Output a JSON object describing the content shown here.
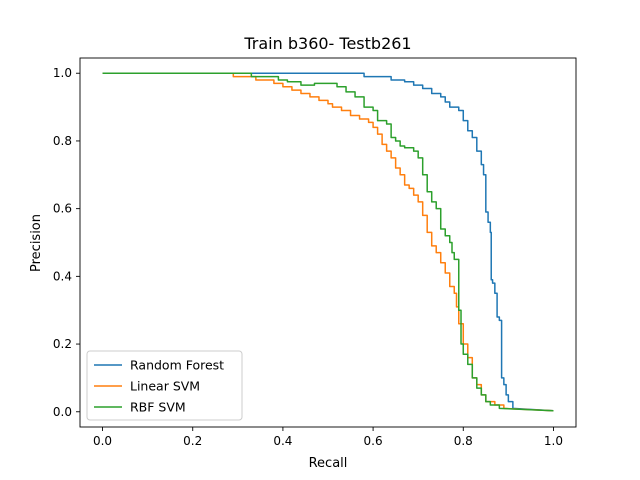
{
  "chart_data": {
    "type": "line",
    "title": "Train b360- Testb261",
    "xlabel": "Recall",
    "ylabel": "Precision",
    "xlim": [
      -0.05,
      1.05
    ],
    "ylim": [
      -0.045,
      1.045
    ],
    "xticks": [
      0.0,
      0.2,
      0.4,
      0.6,
      0.8,
      1.0
    ],
    "yticks": [
      0.0,
      0.2,
      0.4,
      0.6,
      0.8,
      1.0
    ],
    "xtick_labels": [
      "0.0",
      "0.2",
      "0.4",
      "0.6",
      "0.8",
      "1.0"
    ],
    "ytick_labels": [
      "0.0",
      "0.2",
      "0.4",
      "0.6",
      "0.8",
      "1.0"
    ],
    "grid": false,
    "legend": "lower-left",
    "colors": {
      "Random Forest": "#1f77b4",
      "Linear SVM": "#ff7f0e",
      "RBF SVM": "#2ca02c"
    },
    "series": [
      {
        "name": "Random Forest",
        "points": [
          [
            0.0,
            1.0
          ],
          [
            0.58,
            1.0
          ],
          [
            0.58,
            0.99
          ],
          [
            0.64,
            0.99
          ],
          [
            0.64,
            0.98
          ],
          [
            0.67,
            0.98
          ],
          [
            0.67,
            0.975
          ],
          [
            0.69,
            0.975
          ],
          [
            0.69,
            0.965
          ],
          [
            0.71,
            0.965
          ],
          [
            0.71,
            0.955
          ],
          [
            0.73,
            0.955
          ],
          [
            0.73,
            0.94
          ],
          [
            0.75,
            0.94
          ],
          [
            0.75,
            0.93
          ],
          [
            0.76,
            0.93
          ],
          [
            0.76,
            0.915
          ],
          [
            0.77,
            0.915
          ],
          [
            0.77,
            0.9
          ],
          [
            0.79,
            0.9
          ],
          [
            0.79,
            0.89
          ],
          [
            0.8,
            0.89
          ],
          [
            0.8,
            0.86
          ],
          [
            0.81,
            0.86
          ],
          [
            0.81,
            0.83
          ],
          [
            0.82,
            0.83
          ],
          [
            0.82,
            0.81
          ],
          [
            0.83,
            0.81
          ],
          [
            0.83,
            0.77
          ],
          [
            0.84,
            0.77
          ],
          [
            0.84,
            0.73
          ],
          [
            0.845,
            0.73
          ],
          [
            0.845,
            0.7
          ],
          [
            0.85,
            0.7
          ],
          [
            0.85,
            0.59
          ],
          [
            0.855,
            0.59
          ],
          [
            0.855,
            0.56
          ],
          [
            0.86,
            0.56
          ],
          [
            0.86,
            0.53
          ],
          [
            0.862,
            0.53
          ],
          [
            0.862,
            0.39
          ],
          [
            0.865,
            0.39
          ],
          [
            0.865,
            0.38
          ],
          [
            0.87,
            0.38
          ],
          [
            0.87,
            0.35
          ],
          [
            0.875,
            0.35
          ],
          [
            0.875,
            0.28
          ],
          [
            0.88,
            0.28
          ],
          [
            0.88,
            0.27
          ],
          [
            0.885,
            0.27
          ],
          [
            0.885,
            0.1
          ],
          [
            0.89,
            0.1
          ],
          [
            0.89,
            0.08
          ],
          [
            0.895,
            0.08
          ],
          [
            0.895,
            0.05
          ],
          [
            0.9,
            0.05
          ],
          [
            0.9,
            0.03
          ],
          [
            0.91,
            0.03
          ],
          [
            0.91,
            0.01
          ],
          [
            1.0,
            0.003
          ]
        ]
      },
      {
        "name": "Linear SVM",
        "points": [
          [
            0.0,
            1.0
          ],
          [
            0.29,
            1.0
          ],
          [
            0.29,
            0.99
          ],
          [
            0.34,
            0.99
          ],
          [
            0.34,
            0.98
          ],
          [
            0.38,
            0.98
          ],
          [
            0.38,
            0.97
          ],
          [
            0.4,
            0.97
          ],
          [
            0.4,
            0.96
          ],
          [
            0.42,
            0.96
          ],
          [
            0.42,
            0.95
          ],
          [
            0.44,
            0.95
          ],
          [
            0.44,
            0.94
          ],
          [
            0.46,
            0.94
          ],
          [
            0.46,
            0.93
          ],
          [
            0.48,
            0.93
          ],
          [
            0.48,
            0.92
          ],
          [
            0.5,
            0.92
          ],
          [
            0.5,
            0.91
          ],
          [
            0.51,
            0.91
          ],
          [
            0.51,
            0.9
          ],
          [
            0.53,
            0.9
          ],
          [
            0.53,
            0.89
          ],
          [
            0.55,
            0.89
          ],
          [
            0.55,
            0.875
          ],
          [
            0.57,
            0.875
          ],
          [
            0.57,
            0.865
          ],
          [
            0.59,
            0.865
          ],
          [
            0.59,
            0.855
          ],
          [
            0.6,
            0.855
          ],
          [
            0.6,
            0.84
          ],
          [
            0.61,
            0.84
          ],
          [
            0.61,
            0.82
          ],
          [
            0.62,
            0.82
          ],
          [
            0.62,
            0.79
          ],
          [
            0.63,
            0.79
          ],
          [
            0.63,
            0.77
          ],
          [
            0.64,
            0.77
          ],
          [
            0.64,
            0.75
          ],
          [
            0.65,
            0.75
          ],
          [
            0.65,
            0.72
          ],
          [
            0.66,
            0.72
          ],
          [
            0.66,
            0.7
          ],
          [
            0.67,
            0.7
          ],
          [
            0.67,
            0.67
          ],
          [
            0.68,
            0.67
          ],
          [
            0.68,
            0.66
          ],
          [
            0.69,
            0.66
          ],
          [
            0.69,
            0.64
          ],
          [
            0.7,
            0.64
          ],
          [
            0.7,
            0.62
          ],
          [
            0.71,
            0.62
          ],
          [
            0.71,
            0.58
          ],
          [
            0.72,
            0.58
          ],
          [
            0.72,
            0.53
          ],
          [
            0.73,
            0.53
          ],
          [
            0.73,
            0.49
          ],
          [
            0.74,
            0.49
          ],
          [
            0.74,
            0.47
          ],
          [
            0.75,
            0.47
          ],
          [
            0.75,
            0.44
          ],
          [
            0.76,
            0.44
          ],
          [
            0.76,
            0.41
          ],
          [
            0.77,
            0.41
          ],
          [
            0.77,
            0.37
          ],
          [
            0.78,
            0.37
          ],
          [
            0.78,
            0.35
          ],
          [
            0.785,
            0.35
          ],
          [
            0.785,
            0.31
          ],
          [
            0.79,
            0.31
          ],
          [
            0.79,
            0.26
          ],
          [
            0.8,
            0.26
          ],
          [
            0.8,
            0.2
          ],
          [
            0.81,
            0.2
          ],
          [
            0.81,
            0.16
          ],
          [
            0.82,
            0.16
          ],
          [
            0.82,
            0.1
          ],
          [
            0.83,
            0.1
          ],
          [
            0.83,
            0.08
          ],
          [
            0.84,
            0.08
          ],
          [
            0.84,
            0.05
          ],
          [
            0.85,
            0.05
          ],
          [
            0.85,
            0.03
          ],
          [
            0.87,
            0.03
          ],
          [
            0.87,
            0.02
          ],
          [
            0.89,
            0.02
          ],
          [
            0.89,
            0.01
          ],
          [
            1.0,
            0.003
          ]
        ]
      },
      {
        "name": "RBF SVM",
        "points": [
          [
            0.0,
            1.0
          ],
          [
            0.33,
            1.0
          ],
          [
            0.33,
            0.99
          ],
          [
            0.39,
            0.99
          ],
          [
            0.39,
            0.98
          ],
          [
            0.41,
            0.98
          ],
          [
            0.41,
            0.975
          ],
          [
            0.44,
            0.975
          ],
          [
            0.44,
            0.965
          ],
          [
            0.47,
            0.965
          ],
          [
            0.47,
            0.97
          ],
          [
            0.52,
            0.97
          ],
          [
            0.52,
            0.96
          ],
          [
            0.54,
            0.96
          ],
          [
            0.54,
            0.945
          ],
          [
            0.56,
            0.945
          ],
          [
            0.56,
            0.93
          ],
          [
            0.58,
            0.93
          ],
          [
            0.58,
            0.9
          ],
          [
            0.6,
            0.9
          ],
          [
            0.6,
            0.89
          ],
          [
            0.61,
            0.89
          ],
          [
            0.61,
            0.86
          ],
          [
            0.63,
            0.86
          ],
          [
            0.63,
            0.85
          ],
          [
            0.64,
            0.85
          ],
          [
            0.64,
            0.81
          ],
          [
            0.65,
            0.81
          ],
          [
            0.65,
            0.8
          ],
          [
            0.66,
            0.8
          ],
          [
            0.66,
            0.785
          ],
          [
            0.67,
            0.785
          ],
          [
            0.67,
            0.78
          ],
          [
            0.69,
            0.78
          ],
          [
            0.69,
            0.77
          ],
          [
            0.7,
            0.77
          ],
          [
            0.7,
            0.75
          ],
          [
            0.71,
            0.75
          ],
          [
            0.71,
            0.7
          ],
          [
            0.72,
            0.7
          ],
          [
            0.72,
            0.65
          ],
          [
            0.73,
            0.65
          ],
          [
            0.73,
            0.62
          ],
          [
            0.74,
            0.62
          ],
          [
            0.74,
            0.6
          ],
          [
            0.75,
            0.6
          ],
          [
            0.75,
            0.54
          ],
          [
            0.76,
            0.54
          ],
          [
            0.76,
            0.52
          ],
          [
            0.77,
            0.52
          ],
          [
            0.77,
            0.5
          ],
          [
            0.775,
            0.5
          ],
          [
            0.775,
            0.47
          ],
          [
            0.78,
            0.47
          ],
          [
            0.78,
            0.45
          ],
          [
            0.79,
            0.45
          ],
          [
            0.79,
            0.3
          ],
          [
            0.795,
            0.3
          ],
          [
            0.795,
            0.2
          ],
          [
            0.8,
            0.2
          ],
          [
            0.8,
            0.17
          ],
          [
            0.81,
            0.17
          ],
          [
            0.81,
            0.14
          ],
          [
            0.82,
            0.14
          ],
          [
            0.82,
            0.1
          ],
          [
            0.83,
            0.1
          ],
          [
            0.83,
            0.07
          ],
          [
            0.84,
            0.07
          ],
          [
            0.84,
            0.05
          ],
          [
            0.85,
            0.05
          ],
          [
            0.85,
            0.03
          ],
          [
            0.86,
            0.03
          ],
          [
            0.86,
            0.02
          ],
          [
            0.88,
            0.02
          ],
          [
            0.88,
            0.01
          ],
          [
            1.0,
            0.003
          ]
        ]
      }
    ]
  }
}
